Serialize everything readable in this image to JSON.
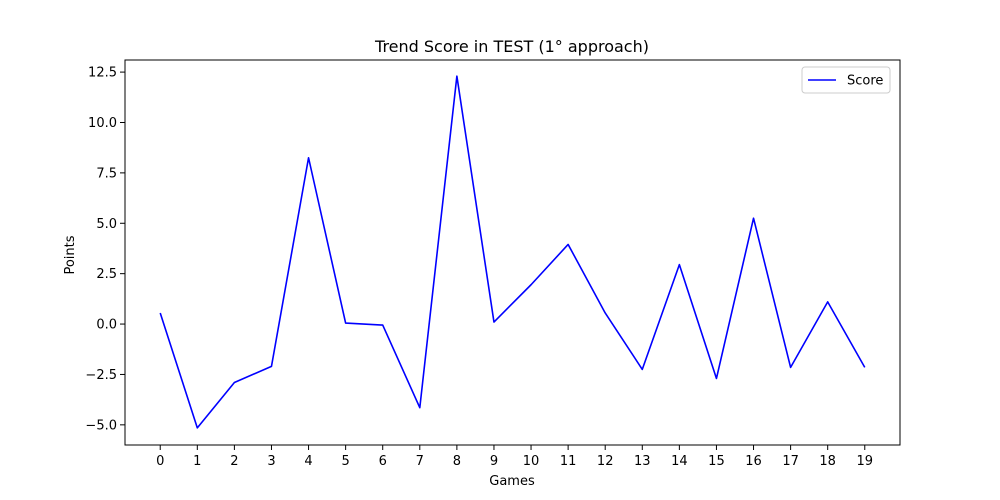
{
  "chart_data": {
    "type": "line",
    "title": "Trend Score in TEST (1° approach)",
    "xlabel": "Games",
    "ylabel": "Points",
    "x": [
      0,
      1,
      2,
      3,
      4,
      5,
      6,
      7,
      8,
      9,
      10,
      11,
      12,
      13,
      14,
      15,
      16,
      17,
      18,
      19
    ],
    "x_tick_labels": [
      "0",
      "1",
      "2",
      "3",
      "4",
      "5",
      "6",
      "7",
      "8",
      "9",
      "10",
      "11",
      "12",
      "13",
      "14",
      "15",
      "16",
      "17",
      "18",
      "19"
    ],
    "y_ticks": [
      -5.0,
      -2.5,
      0.0,
      2.5,
      5.0,
      7.5,
      10.0,
      12.5
    ],
    "y_tick_labels": [
      "−5.0",
      "−2.5",
      "0.0",
      "2.5",
      "5.0",
      "7.5",
      "10.0",
      "12.5"
    ],
    "xlim": [
      -0.95,
      19.95
    ],
    "ylim": [
      -6.0,
      13.1
    ],
    "grid": false,
    "legend_position": "top-right",
    "series": [
      {
        "name": "Score",
        "color": "#0000ff",
        "values": [
          0.55,
          -5.15,
          -2.9,
          -2.1,
          8.25,
          0.05,
          -0.05,
          -4.15,
          12.3,
          0.1,
          1.95,
          3.95,
          0.55,
          -2.25,
          2.95,
          -2.7,
          5.25,
          -2.15,
          1.1,
          -2.15
        ]
      }
    ]
  }
}
